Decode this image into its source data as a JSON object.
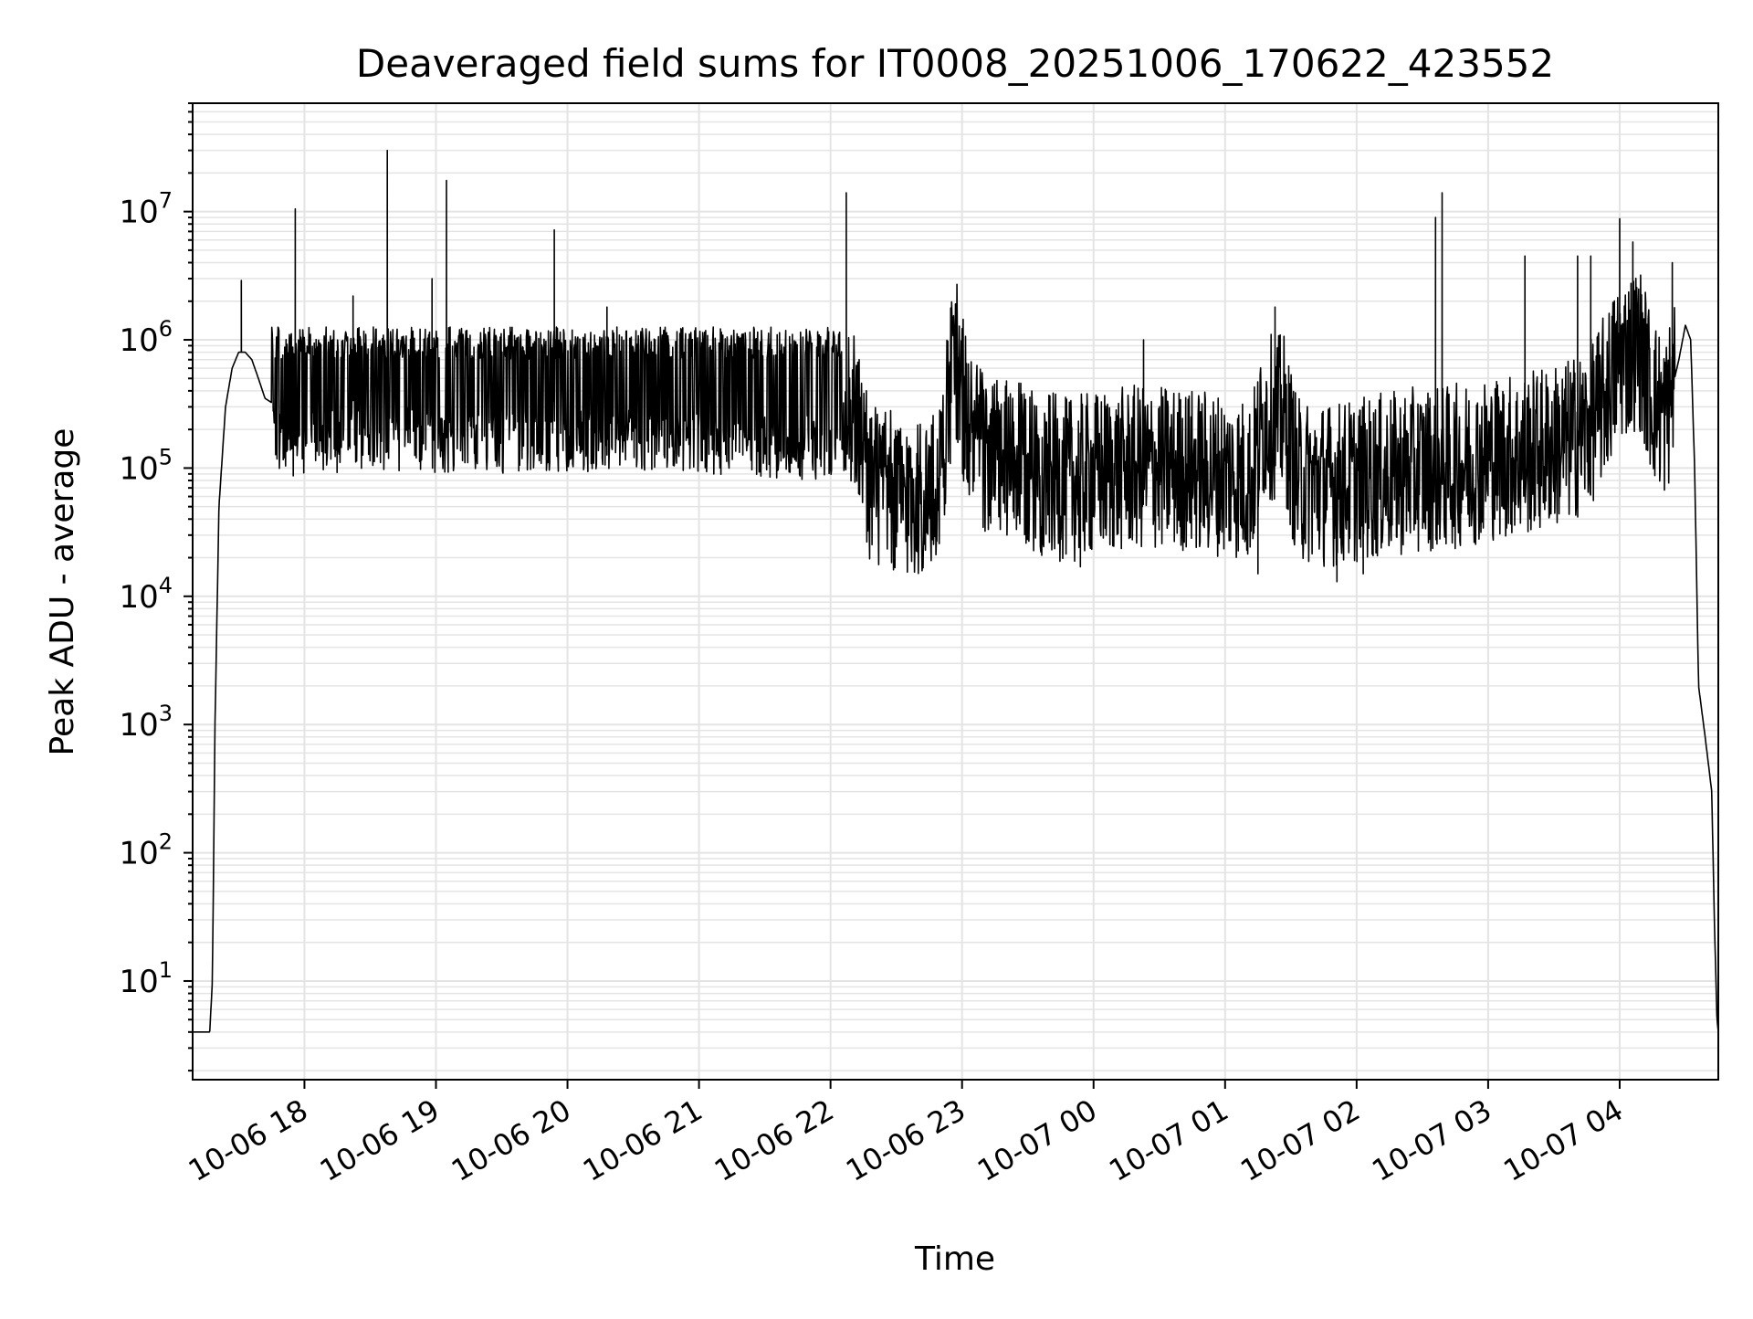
{
  "chart_data": {
    "type": "line",
    "title": "Deaveraged field sums for IT0008_20251006_170622_423552",
    "xlabel": "Time",
    "ylabel": "Peak ADU - average",
    "yscale": "log",
    "ylim": [
      1.7,
      70000000
    ],
    "xlim_hours": [
      17.15,
      28.75
    ],
    "x_unit": "hours since 2025-10-06 00:00",
    "grid": true,
    "legend": "none",
    "colors": {
      "line": "#000000",
      "grid": "#e4e4e4",
      "axis": "#000000"
    },
    "y_ticks": [
      {
        "value": 10,
        "base": "10",
        "exp": "1"
      },
      {
        "value": 100,
        "base": "10",
        "exp": "2"
      },
      {
        "value": 1000,
        "base": "10",
        "exp": "3"
      },
      {
        "value": 10000,
        "base": "10",
        "exp": "4"
      },
      {
        "value": 100000,
        "base": "10",
        "exp": "5"
      },
      {
        "value": 1000000,
        "base": "10",
        "exp": "6"
      },
      {
        "value": 10000000,
        "base": "10",
        "exp": "7"
      }
    ],
    "x_ticks": [
      {
        "value": 18,
        "label": "10-06 18"
      },
      {
        "value": 19,
        "label": "10-06 19"
      },
      {
        "value": 20,
        "label": "10-06 20"
      },
      {
        "value": 21,
        "label": "10-06 21"
      },
      {
        "value": 22,
        "label": "10-06 22"
      },
      {
        "value": 23,
        "label": "10-06 23"
      },
      {
        "value": 24,
        "label": "10-07 00"
      },
      {
        "value": 25,
        "label": "10-07 01"
      },
      {
        "value": 26,
        "label": "10-07 02"
      },
      {
        "value": 27,
        "label": "10-07 03"
      },
      {
        "value": 28,
        "label": "10-07 04"
      }
    ],
    "series": [
      {
        "name": "Peak ADU - average",
        "baseline": {
          "x": [
            17.15,
            17.28,
            17.3,
            17.32,
            17.35,
            17.4,
            17.45,
            17.5,
            17.55,
            17.6,
            17.65,
            17.7,
            17.8,
            18.0,
            18.5,
            19.0,
            19.5,
            20.0,
            20.5,
            21.0,
            21.5,
            22.0,
            22.1,
            22.2,
            22.3,
            22.5,
            22.8,
            22.95,
            23.05,
            23.2,
            23.5,
            23.8,
            24.0,
            24.3,
            24.6,
            25.0,
            25.2,
            25.3,
            25.45,
            25.55,
            25.8,
            26.0,
            26.3,
            26.5,
            26.7,
            27.0,
            27.3,
            27.6,
            27.75,
            27.85,
            28.0,
            28.15,
            28.25,
            28.35,
            28.45,
            28.5,
            28.54,
            28.57,
            28.6,
            28.65,
            28.7,
            28.72,
            28.74,
            28.75
          ],
          "y": [
            4,
            4,
            10,
            1000,
            50000,
            300000,
            600000,
            800000,
            800000,
            700000,
            500000,
            350000,
            300000,
            300000,
            350000,
            320000,
            320000,
            330000,
            320000,
            310000,
            300000,
            280000,
            400000,
            250000,
            80000,
            60000,
            60000,
            800000,
            200000,
            120000,
            100000,
            80000,
            90000,
            100000,
            100000,
            90000,
            80000,
            250000,
            250000,
            80000,
            75000,
            80000,
            90000,
            100000,
            100000,
            120000,
            130000,
            160000,
            200000,
            300000,
            700000,
            900000,
            350000,
            250000,
            700000,
            1300000,
            1000000,
            100000,
            2000,
            800,
            300,
            30,
            5,
            4
          ]
        },
        "noise_pattern": "dense oscillation between baseline and ~1.3e6 before 22:00; ~0.5 decade amplitude afterwards",
        "spikes": [
          {
            "x": 17.52,
            "y": 2900000
          },
          {
            "x": 17.93,
            "y": 10500000
          },
          {
            "x": 18.37,
            "y": 2200000
          },
          {
            "x": 18.63,
            "y": 30000000
          },
          {
            "x": 18.97,
            "y": 3000000
          },
          {
            "x": 19.08,
            "y": 17500000
          },
          {
            "x": 19.9,
            "y": 7200000
          },
          {
            "x": 20.3,
            "y": 1800000
          },
          {
            "x": 22.12,
            "y": 14000000
          },
          {
            "x": 24.38,
            "y": 1000000
          },
          {
            "x": 25.38,
            "y": 1800000
          },
          {
            "x": 26.6,
            "y": 9000000
          },
          {
            "x": 26.65,
            "y": 14000000
          },
          {
            "x": 27.28,
            "y": 4500000
          },
          {
            "x": 27.68,
            "y": 4500000
          },
          {
            "x": 27.78,
            "y": 4500000
          },
          {
            "x": 28.0,
            "y": 8800000
          },
          {
            "x": 28.1,
            "y": 5800000
          },
          {
            "x": 28.4,
            "y": 4000000
          }
        ],
        "dips": [
          {
            "x": 23.9,
            "y": 17000
          },
          {
            "x": 25.25,
            "y": 15000
          },
          {
            "x": 25.85,
            "y": 13000
          },
          {
            "x": 26.05,
            "y": 15000
          }
        ]
      }
    ]
  }
}
